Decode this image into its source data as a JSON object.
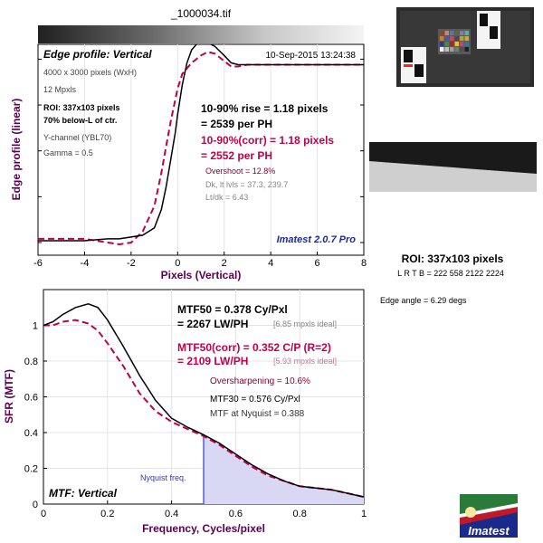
{
  "file_title": "_1000034.tif",
  "top_panel": {
    "title": "Edge profile: Vertical",
    "datetime": "10-Sep-2015 13:24:38",
    "info": [
      "4000 x 3000 pixels (WxH)",
      "12 Mpxls",
      "ROI: 337x103 pixels",
      "70% below-L of ctr.",
      "Y-channel  (YBL70)",
      "Gamma = 0.5"
    ],
    "rise_line1": "10-90% rise = 1.18 pixels",
    "rise_line2": "= 2539 per PH",
    "rise_corr_line1": "10-90%(corr) = 1.18 pixels",
    "rise_corr_line2": "= 2552 per PH",
    "overshoot": "Overshoot = 12.8%",
    "dk_lt": "Dk, lt lvls = 37.3, 239.7",
    "lt_dk": "Lt/dk = 6.43",
    "brand": "Imatest 2.0.7 Pro",
    "ylabel": "Edge profile (linear)",
    "xlabel": "Pixels (Vertical)",
    "xticks": [
      "-6",
      "-4",
      "-2",
      "0",
      "2",
      "4",
      "6",
      "8"
    ]
  },
  "right_panel": {
    "roi_title": "ROI: 337x103 pixels",
    "roi_coords": "L R  T B = 222 558  2122 2224",
    "edge_angle": "Edge angle = 6.29 degs"
  },
  "bottom_panel": {
    "mtf50_line1": "MTF50 = 0.378 Cy/Pxl",
    "mtf50_line2": "= 2267 LW/PH",
    "mtf50_ideal": "[6.85 mpxls ideal]",
    "mtf50c_line1": "MTF50(corr) = 0.352 C/P  (R=2)",
    "mtf50c_line2": "= 2109 LW/PH",
    "mtf50c_ideal": "[5.93 mpxls ideal]",
    "oversharpening": "Oversharpening = 10.6%",
    "mtf30": "MTF30 = 0.576 Cy/Pxl",
    "mtf_nyq": "MTF at Nyquist = 0.388",
    "nyquist_label": "Nyquist freq.",
    "panel_label": "MTF: Vertical",
    "ylabel": "SFR (MTF)",
    "xlabel": "Frequency, Cycles/pixel",
    "xticks": [
      "0",
      "0.2",
      "0.4",
      "0.6",
      "0.8",
      "1"
    ],
    "yticks": [
      "0",
      "0.2",
      "0.4",
      "0.6",
      "0.8",
      "1"
    ]
  },
  "logo_text": "Imatest",
  "colors": {
    "measured": "#000000",
    "corrected": "#c0004a",
    "nyquist_fill": "#d8d8f4",
    "nyquist_line": "#5a5ad0",
    "brand": "#1a2aa0"
  },
  "chart_data": [
    {
      "type": "line",
      "title": "Edge profile: Vertical",
      "xlabel": "Pixels (Vertical)",
      "ylabel": "Edge profile (linear)",
      "xlim": [
        -6,
        8
      ],
      "ylim": [
        0,
        1.15
      ],
      "series": [
        {
          "name": "measured",
          "x": [
            -6,
            -5,
            -4,
            -3,
            -2.5,
            -2,
            -1.5,
            -1,
            -0.7,
            -0.5,
            -0.3,
            -0.1,
            0,
            0.2,
            0.4,
            0.6,
            0.8,
            1,
            1.3,
            1.6,
            2,
            2.3,
            2.6,
            3,
            3.5,
            4,
            5,
            6,
            7,
            8
          ],
          "y": [
            0.01,
            0.01,
            0.01,
            0.02,
            0.02,
            0.03,
            0.04,
            0.08,
            0.18,
            0.3,
            0.45,
            0.6,
            0.7,
            0.86,
            0.98,
            1.05,
            1.08,
            1.09,
            1.09,
            1.07,
            1.02,
            0.98,
            0.97,
            0.97,
            0.97,
            0.97,
            0.97,
            0.97,
            0.97,
            0.97
          ]
        },
        {
          "name": "corrected",
          "x": [
            -6,
            -5,
            -4,
            -3,
            -2.5,
            -2,
            -1.5,
            -1,
            -0.7,
            -0.5,
            -0.3,
            -0.1,
            0,
            0.2,
            0.4,
            0.6,
            0.8,
            1,
            1.3,
            1.6,
            2,
            2.3,
            2.6,
            3,
            3.5,
            4,
            5,
            6,
            7,
            8
          ],
          "y": [
            0.02,
            0.02,
            0.02,
            0.0,
            -0.01,
            0.0,
            0.06,
            0.2,
            0.38,
            0.52,
            0.66,
            0.78,
            0.84,
            0.92,
            0.95,
            0.98,
            1.0,
            1.02,
            1.04,
            1.03,
            0.99,
            0.96,
            0.96,
            0.97,
            0.97,
            0.97,
            0.97,
            0.97,
            0.97,
            0.97
          ]
        }
      ]
    },
    {
      "type": "line",
      "title": "MTF: Vertical",
      "xlabel": "Frequency, Cycles/pixel",
      "ylabel": "SFR (MTF)",
      "xlim": [
        0,
        1
      ],
      "ylim": [
        0,
        1.2
      ],
      "series": [
        {
          "name": "MTF",
          "x": [
            0,
            0.03,
            0.06,
            0.1,
            0.14,
            0.17,
            0.2,
            0.25,
            0.3,
            0.35,
            0.4,
            0.45,
            0.5,
            0.55,
            0.6,
            0.65,
            0.7,
            0.75,
            0.8,
            0.85,
            0.9,
            0.95,
            1.0
          ],
          "y": [
            1.0,
            1.02,
            1.06,
            1.1,
            1.12,
            1.1,
            1.03,
            0.88,
            0.72,
            0.58,
            0.48,
            0.43,
            0.388,
            0.34,
            0.28,
            0.22,
            0.17,
            0.13,
            0.1,
            0.09,
            0.08,
            0.06,
            0.04
          ]
        },
        {
          "name": "MTF(corr)",
          "x": [
            0,
            0.03,
            0.06,
            0.1,
            0.14,
            0.17,
            0.2,
            0.25,
            0.3,
            0.35,
            0.4,
            0.45,
            0.5,
            0.55,
            0.6,
            0.65,
            0.7,
            0.75,
            0.8,
            0.85,
            0.9,
            0.95,
            1.0
          ],
          "y": [
            1.0,
            1.0,
            1.02,
            1.03,
            1.01,
            0.97,
            0.9,
            0.77,
            0.62,
            0.52,
            0.46,
            0.42,
            0.38,
            0.33,
            0.27,
            0.21,
            0.16,
            0.13,
            0.1,
            0.09,
            0.08,
            0.06,
            0.04
          ]
        }
      ]
    }
  ]
}
